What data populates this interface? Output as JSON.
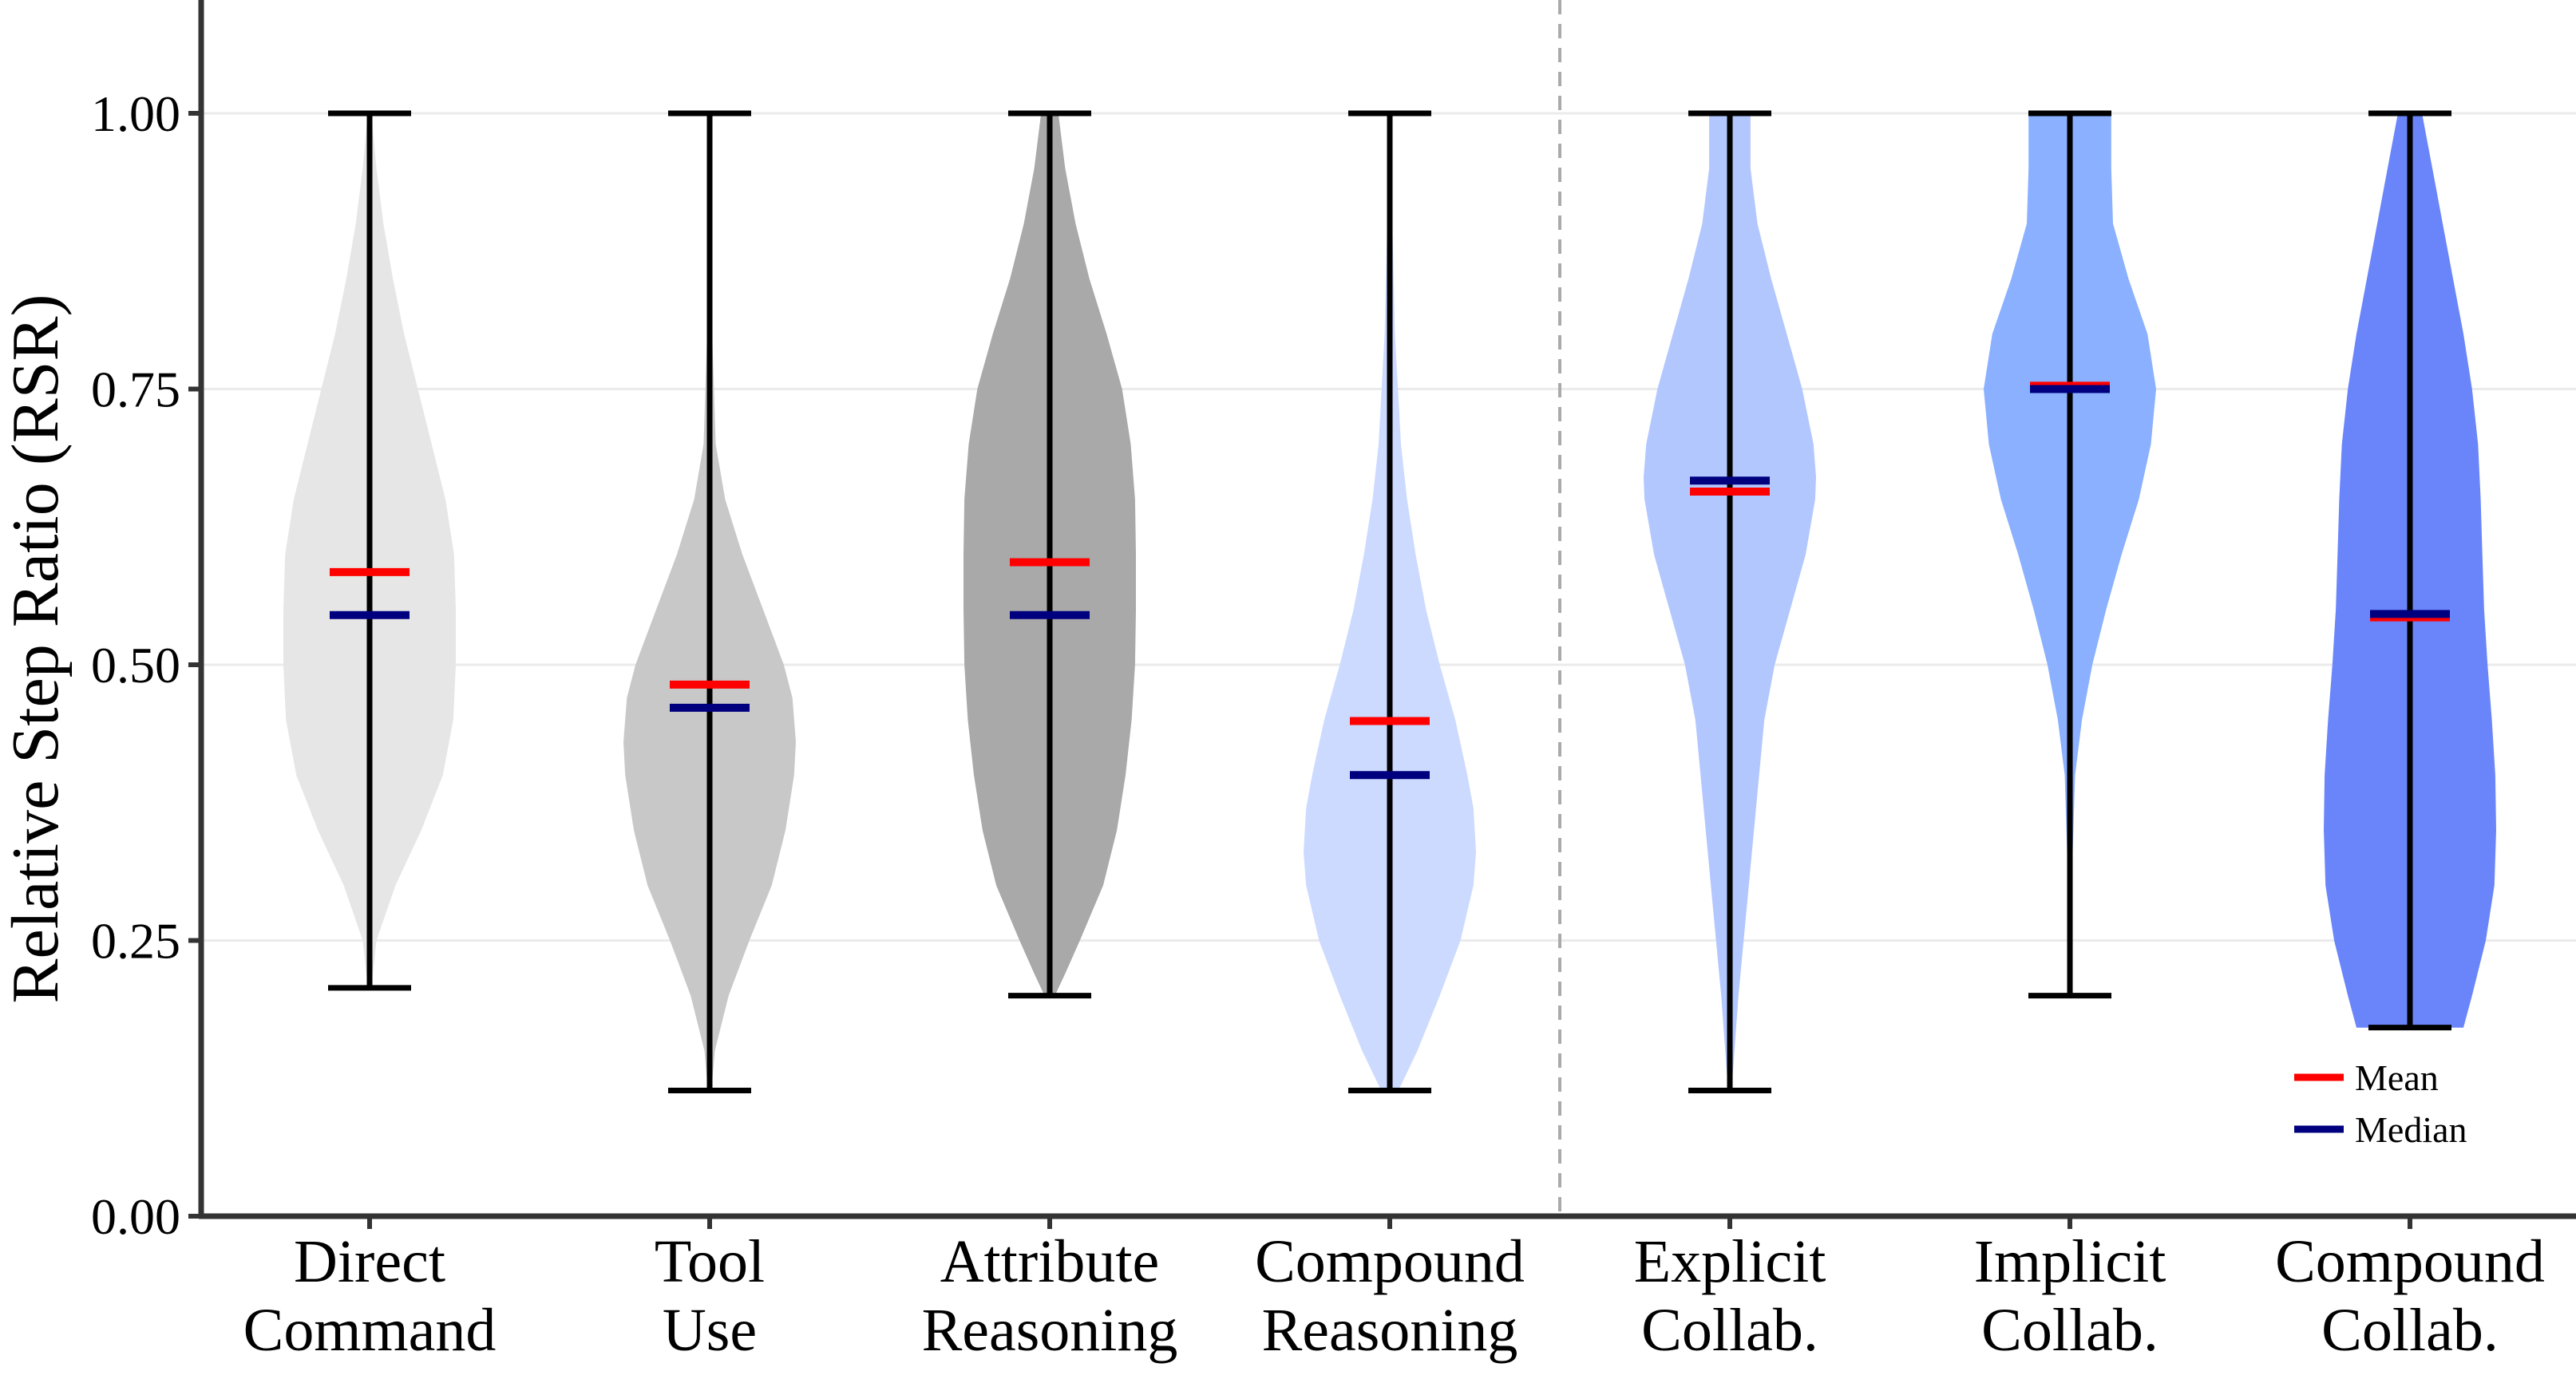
{
  "chart_data": {
    "type": "violin",
    "title": "",
    "xlabel": "",
    "ylabel": "Relative Step Ratio (RSR)",
    "ylim": [
      0,
      1.1
    ],
    "yticks": [
      0.0,
      0.25,
      0.5,
      0.75,
      1.0
    ],
    "ytick_labels": [
      "0.00",
      "0.25",
      "0.50",
      "0.75",
      "1.00"
    ],
    "grid": true,
    "group_separator_after_index": 3,
    "legend": {
      "position": "bottom-right",
      "entries": [
        {
          "label": "Mean",
          "color": "#ff0000"
        },
        {
          "label": "Median",
          "color": "#00007f"
        }
      ]
    },
    "categories": [
      {
        "lines": [
          "Direct",
          "Command"
        ],
        "min": 0.207,
        "max": 1.0,
        "mean": 0.584,
        "median": 0.545,
        "color": "#e6e6e6",
        "density": [
          [
            0.207,
            0.02
          ],
          [
            0.25,
            0.08
          ],
          [
            0.3,
            0.3
          ],
          [
            0.35,
            0.6
          ],
          [
            0.4,
            0.85
          ],
          [
            0.45,
            0.97
          ],
          [
            0.5,
            1.0
          ],
          [
            0.55,
            1.0
          ],
          [
            0.6,
            0.98
          ],
          [
            0.65,
            0.88
          ],
          [
            0.7,
            0.72
          ],
          [
            0.75,
            0.56
          ],
          [
            0.8,
            0.4
          ],
          [
            0.85,
            0.27
          ],
          [
            0.9,
            0.16
          ],
          [
            0.95,
            0.08
          ],
          [
            1.0,
            0.02
          ]
        ]
      },
      {
        "lines": [
          "Tool",
          "Use"
        ],
        "min": 0.114,
        "max": 1.0,
        "mean": 0.482,
        "median": 0.461,
        "color": "#c8c8c8",
        "density": [
          [
            0.114,
            0.02
          ],
          [
            0.15,
            0.06
          ],
          [
            0.2,
            0.22
          ],
          [
            0.25,
            0.46
          ],
          [
            0.3,
            0.72
          ],
          [
            0.35,
            0.88
          ],
          [
            0.4,
            0.98
          ],
          [
            0.43,
            1.0
          ],
          [
            0.47,
            0.96
          ],
          [
            0.5,
            0.86
          ],
          [
            0.55,
            0.62
          ],
          [
            0.6,
            0.38
          ],
          [
            0.65,
            0.18
          ],
          [
            0.7,
            0.07
          ],
          [
            0.8,
            0.03
          ],
          [
            1.0,
            0.01
          ]
        ]
      },
      {
        "lines": [
          "Attribute",
          "Reasoning"
        ],
        "min": 0.2,
        "max": 1.0,
        "mean": 0.593,
        "median": 0.545,
        "color": "#a9a9a9",
        "density": [
          [
            0.2,
            0.06
          ],
          [
            0.22,
            0.18
          ],
          [
            0.25,
            0.35
          ],
          [
            0.3,
            0.62
          ],
          [
            0.35,
            0.78
          ],
          [
            0.4,
            0.88
          ],
          [
            0.45,
            0.95
          ],
          [
            0.5,
            0.99
          ],
          [
            0.55,
            1.0
          ],
          [
            0.6,
            1.0
          ],
          [
            0.65,
            0.99
          ],
          [
            0.7,
            0.94
          ],
          [
            0.75,
            0.84
          ],
          [
            0.8,
            0.66
          ],
          [
            0.85,
            0.46
          ],
          [
            0.9,
            0.3
          ],
          [
            0.95,
            0.18
          ],
          [
            1.0,
            0.1
          ]
        ]
      },
      {
        "lines": [
          "Compound",
          "Reasoning"
        ],
        "min": 0.114,
        "max": 1.0,
        "mean": 0.449,
        "median": 0.4,
        "color": "#ccdaff",
        "density": [
          [
            0.114,
            0.1
          ],
          [
            0.15,
            0.32
          ],
          [
            0.2,
            0.58
          ],
          [
            0.25,
            0.82
          ],
          [
            0.3,
            0.97
          ],
          [
            0.33,
            1.0
          ],
          [
            0.37,
            0.97
          ],
          [
            0.4,
            0.9
          ],
          [
            0.45,
            0.76
          ],
          [
            0.5,
            0.58
          ],
          [
            0.55,
            0.42
          ],
          [
            0.6,
            0.3
          ],
          [
            0.65,
            0.2
          ],
          [
            0.7,
            0.13
          ],
          [
            0.8,
            0.06
          ],
          [
            0.9,
            0.03
          ],
          [
            1.0,
            0.01
          ]
        ]
      },
      {
        "lines": [
          "Explicit",
          "Collab."
        ],
        "min": 0.114,
        "max": 1.0,
        "mean": 0.657,
        "median": 0.667,
        "color": "#b3c7ff",
        "density": [
          [
            0.114,
            0.02
          ],
          [
            0.2,
            0.1
          ],
          [
            0.3,
            0.22
          ],
          [
            0.4,
            0.34
          ],
          [
            0.45,
            0.4
          ],
          [
            0.5,
            0.52
          ],
          [
            0.55,
            0.7
          ],
          [
            0.6,
            0.88
          ],
          [
            0.65,
            0.99
          ],
          [
            0.67,
            1.0
          ],
          [
            0.7,
            0.97
          ],
          [
            0.75,
            0.84
          ],
          [
            0.8,
            0.66
          ],
          [
            0.85,
            0.48
          ],
          [
            0.9,
            0.32
          ],
          [
            0.95,
            0.24
          ],
          [
            1.0,
            0.24
          ]
        ]
      },
      {
        "lines": [
          "Implicit",
          "Collab."
        ],
        "min": 0.2,
        "max": 1.0,
        "mean": 0.753,
        "median": 0.75,
        "color": "#8ab0ff",
        "density": [
          [
            0.2,
            0.01
          ],
          [
            0.3,
            0.02
          ],
          [
            0.4,
            0.06
          ],
          [
            0.45,
            0.14
          ],
          [
            0.5,
            0.26
          ],
          [
            0.55,
            0.42
          ],
          [
            0.6,
            0.6
          ],
          [
            0.65,
            0.8
          ],
          [
            0.7,
            0.94
          ],
          [
            0.75,
            1.0
          ],
          [
            0.8,
            0.9
          ],
          [
            0.85,
            0.68
          ],
          [
            0.9,
            0.5
          ],
          [
            0.95,
            0.48
          ],
          [
            1.0,
            0.48
          ]
        ]
      },
      {
        "lines": [
          "Compound",
          "Collab."
        ],
        "min": 0.171,
        "max": 1.0,
        "mean": 0.543,
        "median": 0.546,
        "color": "#6a85fa",
        "density": [
          [
            0.171,
            0.62
          ],
          [
            0.2,
            0.72
          ],
          [
            0.25,
            0.88
          ],
          [
            0.3,
            0.98
          ],
          [
            0.35,
            1.0
          ],
          [
            0.4,
            0.99
          ],
          [
            0.45,
            0.95
          ],
          [
            0.5,
            0.9
          ],
          [
            0.55,
            0.86
          ],
          [
            0.6,
            0.84
          ],
          [
            0.65,
            0.82
          ],
          [
            0.7,
            0.79
          ],
          [
            0.75,
            0.72
          ],
          [
            0.8,
            0.62
          ],
          [
            0.85,
            0.5
          ],
          [
            0.9,
            0.38
          ],
          [
            0.95,
            0.26
          ],
          [
            1.0,
            0.14
          ]
        ]
      }
    ]
  }
}
